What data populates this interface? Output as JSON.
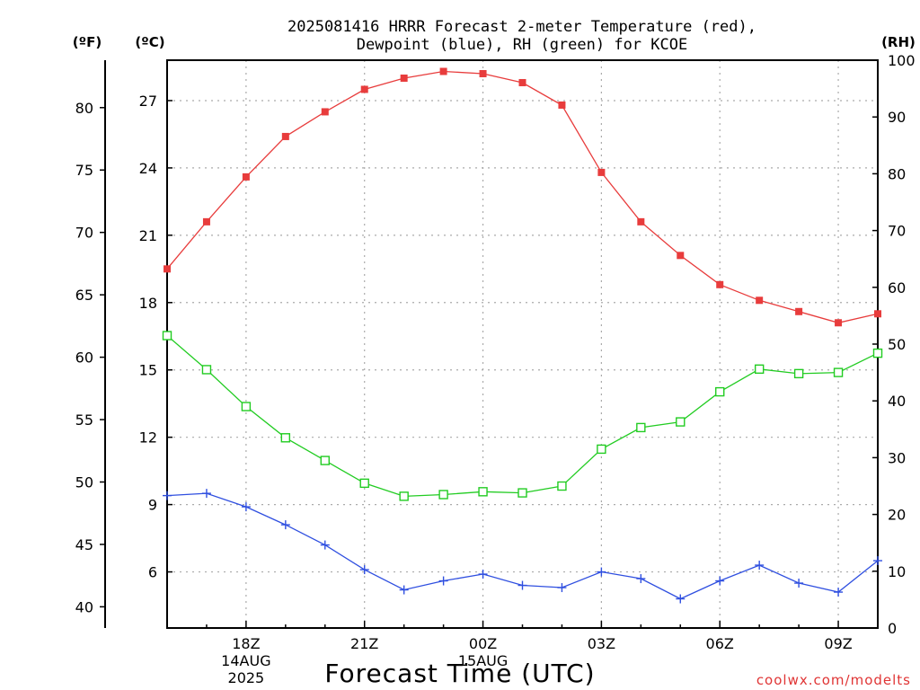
{
  "chart_data": {
    "type": "line",
    "title_line1": "2025081416 HRRR Forecast 2-meter Temperature (red),",
    "title_line2": "Dewpoint (blue), RH (green) for KCOE",
    "xlabel": "Forecast Time (UTC)",
    "credit": "coolwx.com/modelts",
    "units": {
      "fahrenheit": "(ºF)",
      "celsius": "(ºC)",
      "rh": "(RH)"
    },
    "x": [
      "16Z",
      "17Z",
      "18Z",
      "19Z",
      "20Z",
      "21Z",
      "22Z",
      "23Z",
      "00Z",
      "01Z",
      "02Z",
      "03Z",
      "04Z",
      "05Z",
      "06Z",
      "07Z",
      "08Z",
      "09Z",
      "10Z"
    ],
    "x_tick_labels": [
      {
        "x": "18Z",
        "lines": [
          "18Z",
          "14AUG",
          "2025"
        ]
      },
      {
        "x": "21Z",
        "lines": [
          "21Z"
        ]
      },
      {
        "x": "00Z",
        "lines": [
          "00Z",
          "15AUG"
        ]
      },
      {
        "x": "03Z",
        "lines": [
          "03Z"
        ]
      },
      {
        "x": "06Z",
        "lines": [
          "06Z"
        ]
      },
      {
        "x": "09Z",
        "lines": [
          "09Z"
        ]
      }
    ],
    "celsius_axis": {
      "range": [
        3.5,
        28.8
      ],
      "ticks": [
        6,
        9,
        12,
        15,
        18,
        21,
        24,
        27
      ]
    },
    "fahrenheit_axis": {
      "range": [
        38.3,
        83.8
      ],
      "ticks": [
        40,
        45,
        50,
        55,
        60,
        65,
        70,
        75,
        80
      ]
    },
    "rh_axis": {
      "range": [
        0,
        100
      ],
      "ticks": [
        0,
        10,
        20,
        30,
        40,
        50,
        60,
        70,
        80,
        90,
        100
      ]
    },
    "series": [
      {
        "name": "Temperature",
        "axis": "celsius",
        "color": "#e83c3c",
        "marker": "filled-square",
        "values": [
          19.5,
          21.6,
          23.6,
          25.4,
          26.5,
          27.5,
          28.0,
          28.3,
          28.2,
          27.8,
          26.8,
          23.8,
          21.6,
          20.1,
          18.8,
          18.1,
          17.6,
          17.1,
          17.5
        ]
      },
      {
        "name": "Dewpoint",
        "axis": "celsius",
        "color": "#2f4fe0",
        "marker": "plus",
        "values": [
          9.4,
          9.5,
          8.9,
          8.1,
          7.2,
          6.1,
          5.2,
          5.6,
          5.9,
          5.4,
          5.3,
          6.0,
          5.7,
          4.8,
          5.6,
          6.3,
          5.5,
          5.1,
          6.5
        ]
      },
      {
        "name": "RH",
        "axis": "rh",
        "color": "#22cc22",
        "marker": "open-square",
        "values": [
          51.5,
          45.5,
          39.0,
          33.5,
          29.5,
          25.5,
          23.2,
          23.5,
          24.0,
          23.8,
          25.0,
          31.5,
          35.3,
          36.3,
          41.6,
          45.6,
          44.8,
          45.0,
          48.4
        ]
      }
    ],
    "grid": true
  }
}
